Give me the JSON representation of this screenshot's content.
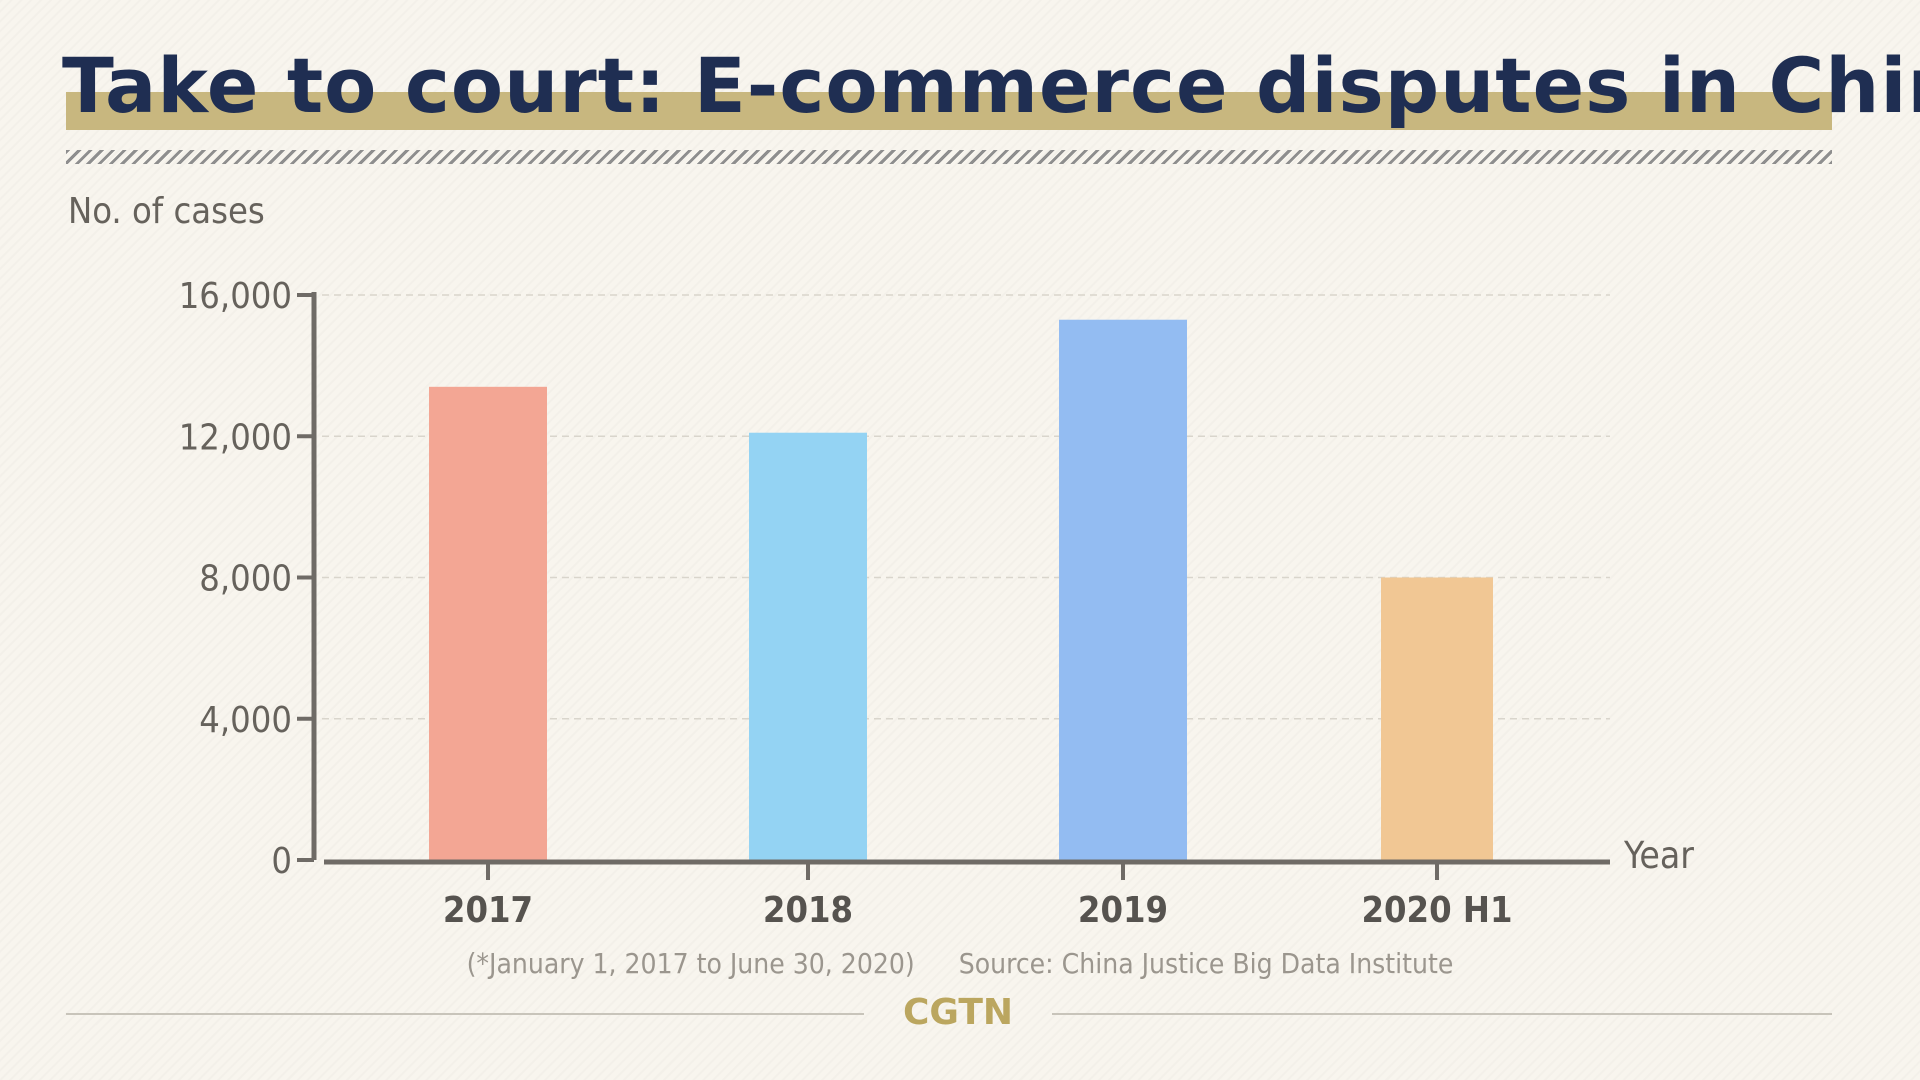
{
  "title": "Take to court: E-commerce disputes in China",
  "brand": "CGTN",
  "footnote": "(*January 1, 2017 to June 30, 2020)",
  "source": "Source: China Justice Big Data Institute",
  "colors": {
    "title": "#1f2e52",
    "title_highlight": "#c8b77f",
    "axis": "#6f6b66",
    "brand": "#bba65f"
  },
  "chart_data": {
    "type": "bar",
    "title": "Take to court: E-commerce disputes in China",
    "xlabel": "Year",
    "ylabel": "No. of cases",
    "categories": [
      "2017",
      "2018",
      "2019",
      "2020 H1"
    ],
    "values": [
      13400,
      12100,
      15300,
      8000
    ],
    "bar_colors": [
      "#f3a694",
      "#94d3f3",
      "#93bcf2",
      "#f1c794"
    ],
    "ylim": [
      0,
      16000
    ],
    "yticks": [
      0,
      4000,
      8000,
      12000,
      16000
    ],
    "ytick_labels": [
      "0",
      "4,000",
      "8,000",
      "12,000",
      "16,000"
    ],
    "grid": true,
    "legend": "none"
  }
}
